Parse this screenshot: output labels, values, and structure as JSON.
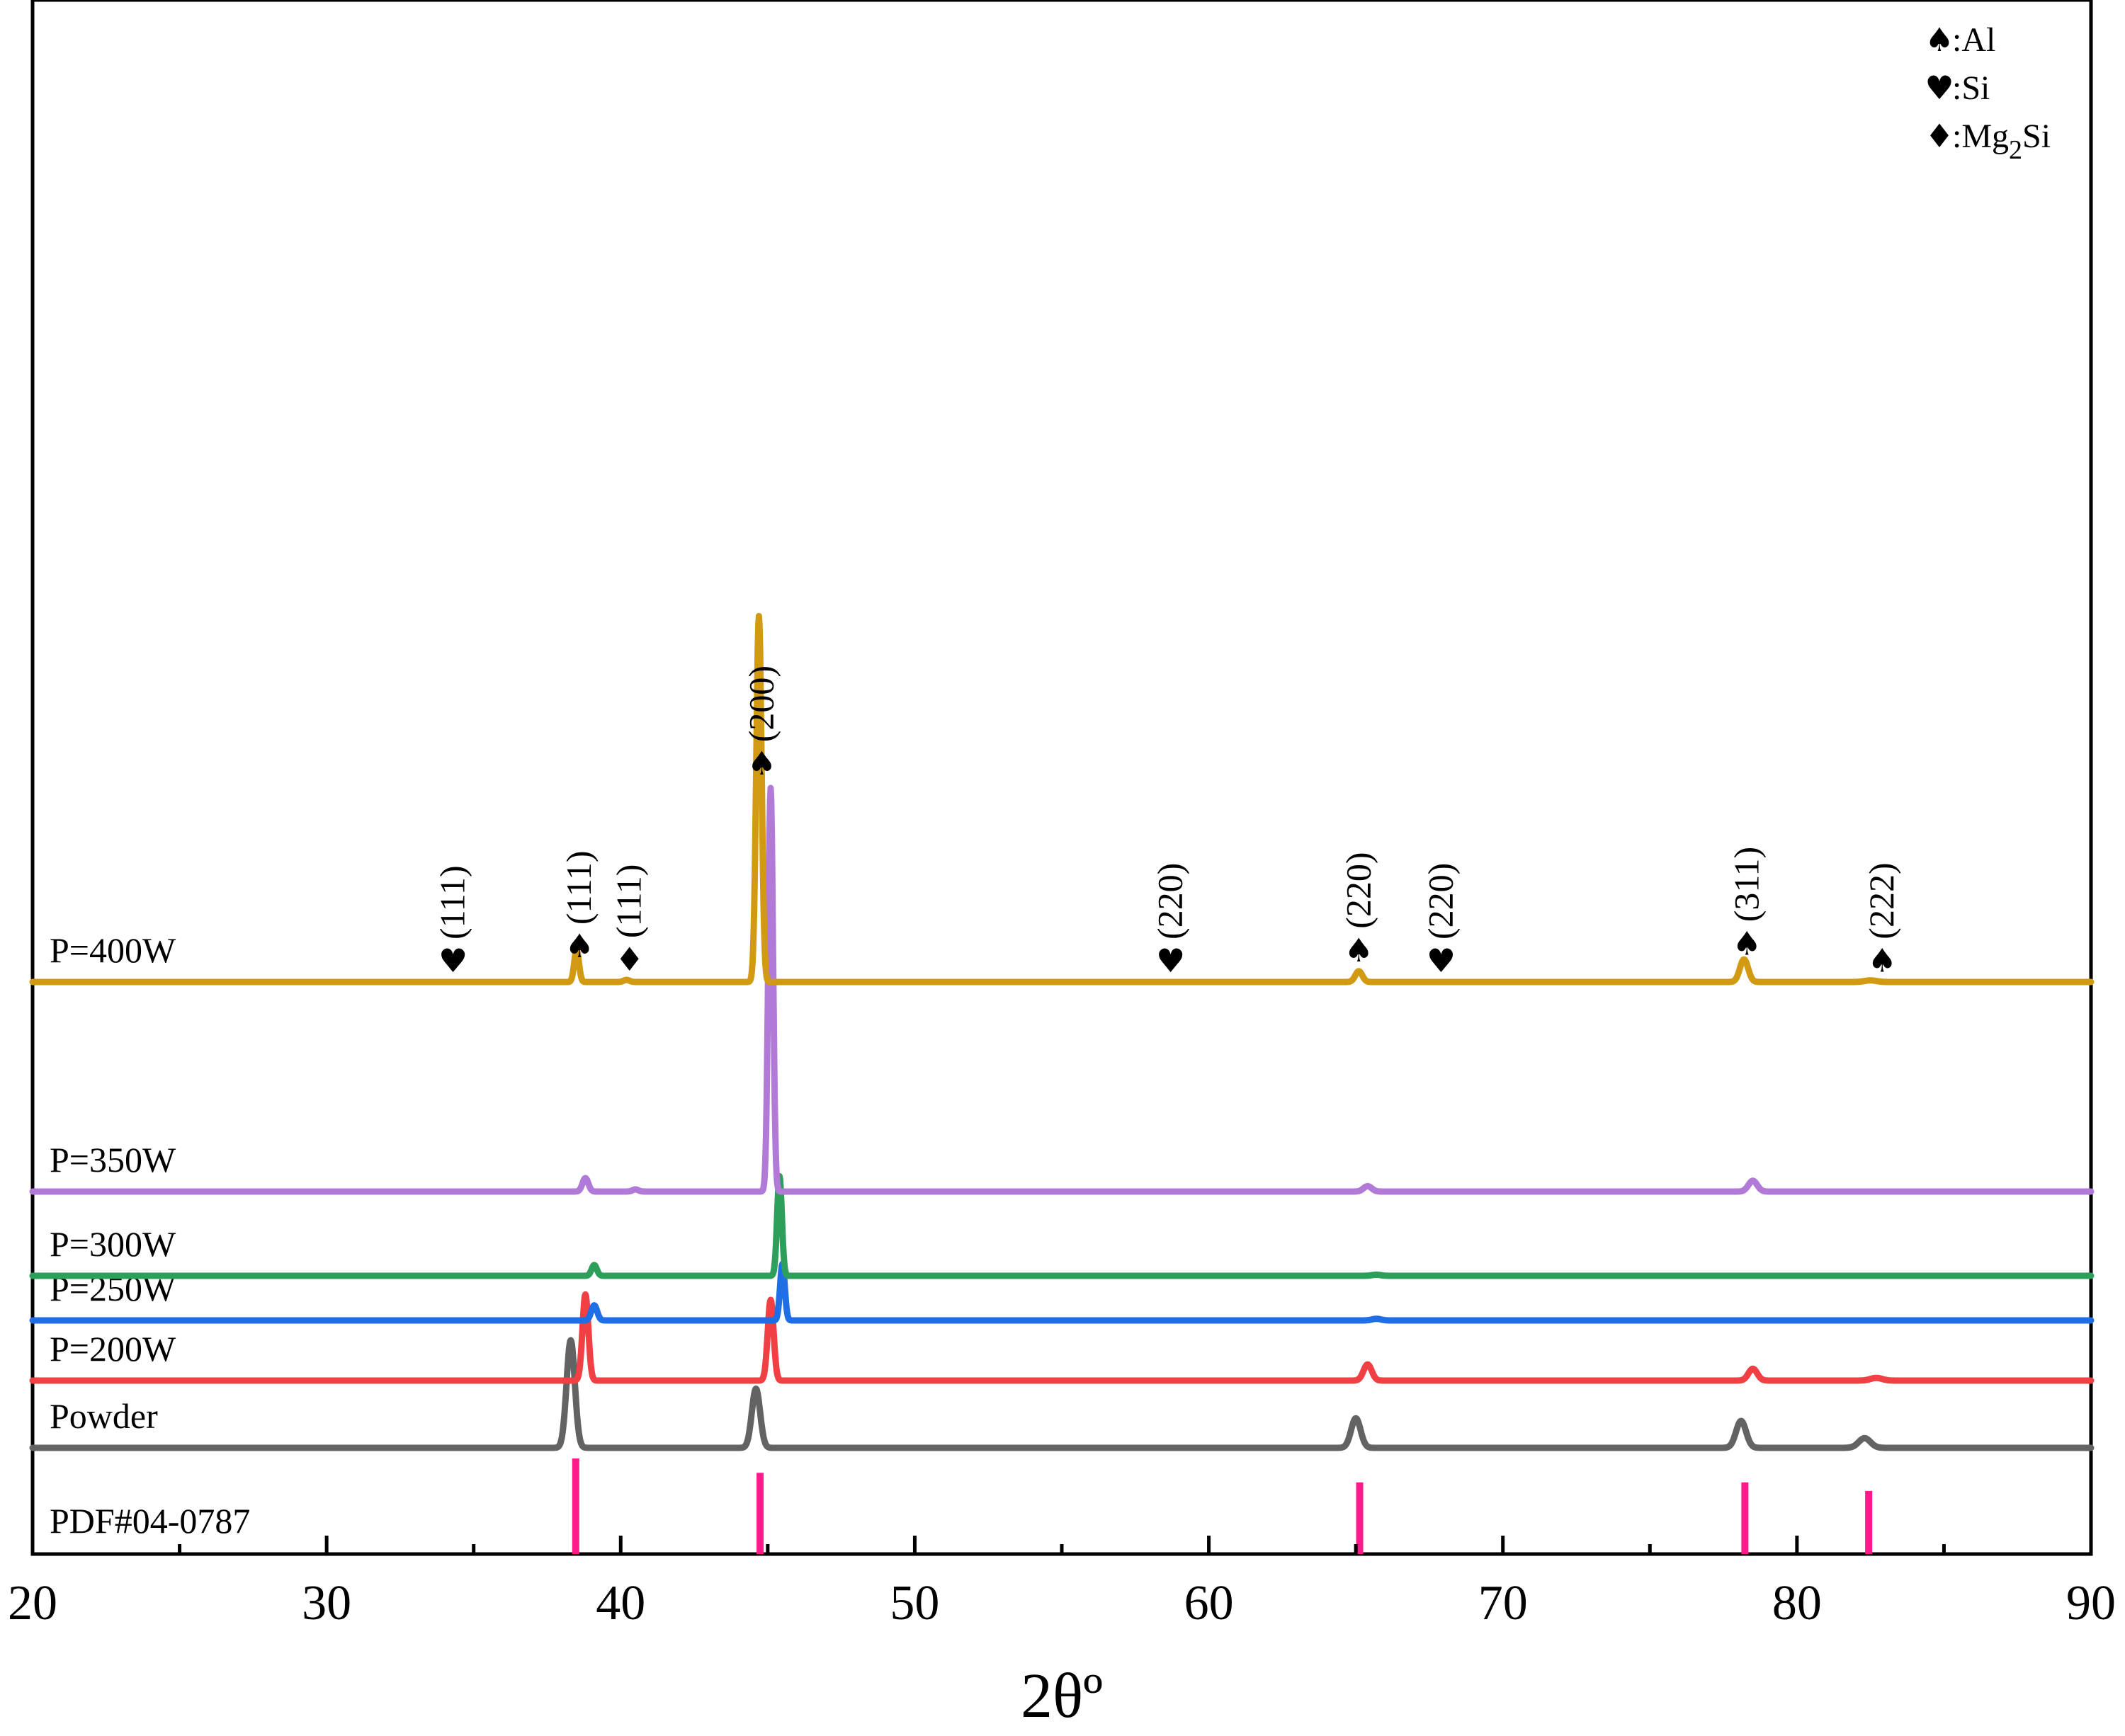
{
  "chart_data": {
    "type": "line",
    "xlabel": "2θº",
    "ylabel": "",
    "xlim": [
      20,
      90
    ],
    "x_ticks": [
      20,
      30,
      40,
      50,
      60,
      70,
      80,
      90
    ],
    "y_axis_shown": false,
    "grid": false,
    "legend": {
      "placement": "top-right",
      "entries": [
        {
          "symbol": "♠",
          "text": ":Al"
        },
        {
          "symbol": "♥",
          "text": ":Si"
        },
        {
          "symbol": "♦",
          "text": ":Mg",
          "subscript": "2",
          "suffix": "Si"
        }
      ]
    },
    "reference": {
      "name": "PDF#04-0787",
      "color": "#ff1a8c",
      "lines": [
        {
          "x": 38.47,
          "height": 1.0
        },
        {
          "x": 44.74,
          "height": 0.85
        },
        {
          "x": 65.13,
          "height": 0.75
        },
        {
          "x": 78.23,
          "height": 0.75
        },
        {
          "x": 82.44,
          "height": 0.66
        }
      ]
    },
    "series": [
      {
        "name": "Powder",
        "color": "#636363",
        "baseline": 0,
        "peaks": [
          [
            38.3,
            2.0,
            0.14
          ],
          [
            44.6,
            1.1,
            0.14
          ],
          [
            65.0,
            0.55,
            0.16
          ],
          [
            78.1,
            0.5,
            0.17
          ],
          [
            82.3,
            0.18,
            0.2
          ]
        ]
      },
      {
        "name": "P=200W",
        "color": "#f04043",
        "baseline": 95,
        "peaks": [
          [
            38.8,
            1.6,
            0.1
          ],
          [
            45.1,
            1.5,
            0.1
          ],
          [
            65.4,
            0.3,
            0.14
          ],
          [
            78.5,
            0.22,
            0.15
          ],
          [
            82.7,
            0.05,
            0.2
          ]
        ]
      },
      {
        "name": "P=250W",
        "color": "#1f6ee6",
        "baseline": 180,
        "peaks": [
          [
            39.1,
            0.28,
            0.1
          ],
          [
            45.5,
            1.05,
            0.08
          ],
          [
            65.7,
            0.03,
            0.15
          ]
        ]
      },
      {
        "name": "P=300W",
        "color": "#2e9e5b",
        "baseline": 243,
        "peaks": [
          [
            39.1,
            0.2,
            0.09
          ],
          [
            45.4,
            1.85,
            0.08
          ],
          [
            65.7,
            0.02,
            0.15
          ]
        ]
      },
      {
        "name": "P=350W",
        "color": "#b07ad6",
        "baseline": 362,
        "peaks": [
          [
            38.8,
            0.25,
            0.1
          ],
          [
            40.5,
            0.04,
            0.1
          ],
          [
            45.1,
            7.5,
            0.08
          ],
          [
            65.4,
            0.1,
            0.14
          ],
          [
            78.5,
            0.2,
            0.15
          ]
        ]
      },
      {
        "name": "P=400W",
        "color": "#d19a12",
        "baseline": 658,
        "peaks": [
          [
            38.5,
            0.6,
            0.08
          ],
          [
            40.2,
            0.04,
            0.1
          ],
          [
            44.7,
            6.8,
            0.09
          ],
          [
            65.1,
            0.2,
            0.12
          ],
          [
            78.2,
            0.42,
            0.14
          ],
          [
            82.5,
            0.03,
            0.2
          ]
        ]
      }
    ],
    "annotations": [
      {
        "x": 34.3,
        "symbol": "♥",
        "text": "(111)"
      },
      {
        "x": 38.6,
        "symbol": "♠",
        "text": "(111)"
      },
      {
        "x": 40.3,
        "symbol": "♦",
        "text": "(111)"
      },
      {
        "x": 44.8,
        "symbol": "♠",
        "text": "(200)"
      },
      {
        "x": 58.7,
        "symbol": "♥",
        "text": "(220)"
      },
      {
        "x": 65.1,
        "symbol": "♠",
        "text": "(220)"
      },
      {
        "x": 67.9,
        "symbol": "♥",
        "text": "(220)"
      },
      {
        "x": 78.3,
        "symbol": "♠",
        "text": "(311)"
      },
      {
        "x": 82.9,
        "symbol": "♠",
        "text": "(222)"
      }
    ]
  }
}
